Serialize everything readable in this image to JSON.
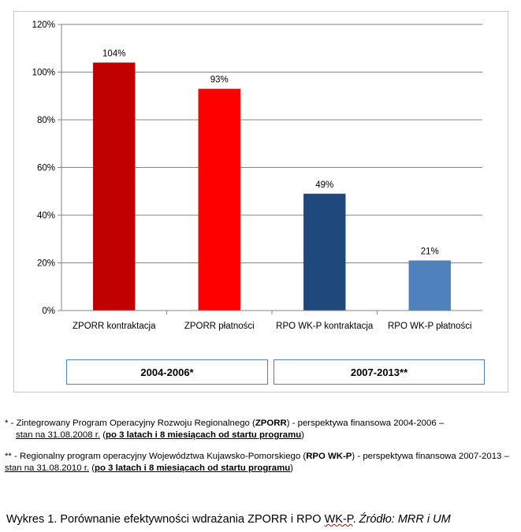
{
  "chart_data": {
    "type": "bar",
    "categories": [
      "ZPORR kontraktacja",
      "ZPORR płatności",
      "RPO WK-P kontraktacja",
      "RPO WK-P płatności"
    ],
    "values": [
      104,
      93,
      49,
      21
    ],
    "data_labels": [
      "104%",
      "93%",
      "49%",
      "21%"
    ],
    "bar_colors": [
      "#c00000",
      "#ff0000",
      "#1f497d",
      "#4f81bd"
    ],
    "ylim": [
      0,
      120
    ],
    "yticks": [
      0,
      20,
      40,
      60,
      80,
      100,
      120
    ],
    "ytick_labels": [
      "0%",
      "20%",
      "40%",
      "60%",
      "80%",
      "100%",
      "120%"
    ],
    "grid": true,
    "title": "",
    "xlabel": "",
    "ylabel": ""
  },
  "periods": {
    "first": "2004-2006*",
    "second": "2007-2013**"
  },
  "notes": {
    "n1_marker": "* -",
    "n1_text_a": " Zintegrowany Program Operacyjny Rozwoju Regionalnego  (",
    "n1_bold": "ZPORR",
    "n1_text_b": ") - perspektywa finansowa 2004-2006 –",
    "n1_stan": "stan na 31.08.2008 r.",
    "n1_paren_open": " (",
    "n1_bold2": "po 3 latach i 8 miesiącach od startu programu",
    "n1_paren_close": ")",
    "n2_marker": "** -",
    "n2_text_a": " Regionalny program operacyjny Województwa Kujawsko-Pomorskiego (",
    "n2_bold": "RPO WK-P",
    "n2_text_b": ") - perspektywa finansowa 2007-2013 – ",
    "n2_stan": "stan na 31.08.2010 r.",
    "n2_paren_open": " (",
    "n2_bold2": "po 3 latach i 8 miesiącach od startu programu",
    "n2_paren_close": ")"
  },
  "caption": {
    "main": "Wykres 1. Porównanie efektywności wdrażania ZPORR i RPO ",
    "wkp": "WK-P",
    "sep": ". ",
    "source": "Źródło: MRR i UM"
  }
}
